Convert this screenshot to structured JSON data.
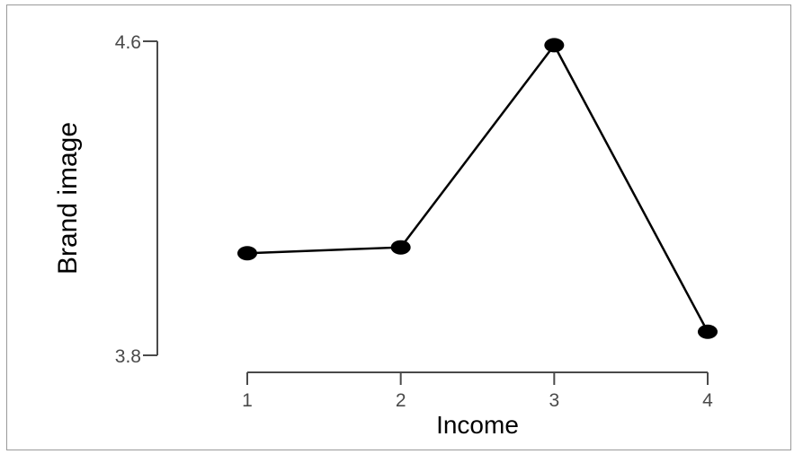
{
  "chart_data": {
    "type": "line",
    "xlabel": "Income",
    "ylabel": "Brand image",
    "x": [
      1,
      2,
      3,
      4
    ],
    "x_ticks": [
      "1",
      "2",
      "3",
      "4"
    ],
    "y_ticks": [
      "3.8",
      "4.6"
    ],
    "y_tick_values": [
      3.8,
      4.6
    ],
    "ylim": [
      3.8,
      4.6
    ],
    "series": [
      {
        "values": [
          4.06,
          4.075,
          4.59,
          3.86
        ]
      }
    ],
    "grid": false,
    "legend": "none",
    "colors": {
      "line": "#000000",
      "marker": "#000000",
      "axis": "#4a4a4a"
    }
  }
}
